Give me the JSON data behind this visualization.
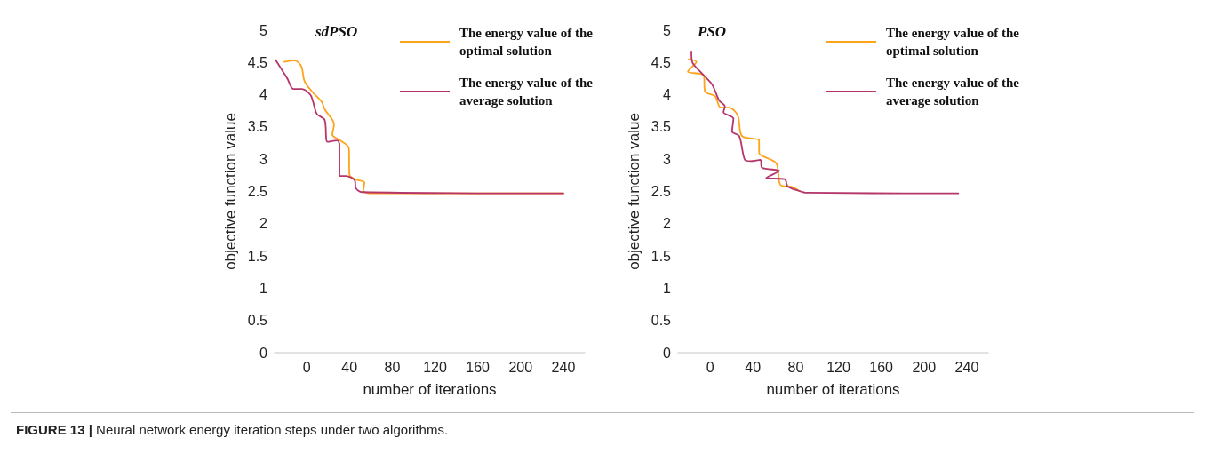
{
  "chart_data": [
    {
      "type": "line",
      "title": "sdPSO",
      "xlabel": "number of iterations",
      "ylabel": "objective function value",
      "xlim": [
        -30,
        260
      ],
      "xticks": [
        0,
        40,
        80,
        120,
        160,
        200,
        240
      ],
      "ylim": [
        0,
        5
      ],
      "yticks": [
        0,
        0.5,
        1,
        1.5,
        2,
        2.5,
        3,
        3.5,
        4,
        4.5,
        5
      ],
      "legend": "top right",
      "marker": "none",
      "line_style": "solid",
      "series": [
        {
          "name": "The energy value of the optimal solution",
          "color": "#ffa31a",
          "x": [
            -21,
            -11,
            -5,
            -2,
            5,
            14,
            17,
            25.6,
            24,
            31.5,
            39.5,
            40,
            45,
            54,
            53,
            59.5,
            240
          ],
          "values": [
            4.51,
            4.53,
            4.44,
            4.21,
            4.05,
            3.89,
            3.77,
            3.54,
            3.38,
            3.29,
            3.17,
            2.76,
            2.69,
            2.64,
            2.51,
            2.47,
            2.47
          ]
        },
        {
          "name": "The energy value of the average solution",
          "color": "#b5366b",
          "x": [
            -29,
            -18,
            -12.5,
            -4.5,
            3.5,
            6,
            9.6,
            16.8,
            19.5,
            28.8,
            30.7,
            30.7,
            36.8,
            45,
            46,
            51.5,
            240
          ],
          "values": [
            4.54,
            4.25,
            4.09,
            4.09,
            4.0,
            3.89,
            3.7,
            3.61,
            3.27,
            3.29,
            3.22,
            2.74,
            2.74,
            2.67,
            2.55,
            2.49,
            2.47
          ]
        }
      ],
      "annotations": [
        "FIGURE 13 | Neural network energy iteration steps under two algorithms."
      ]
    },
    {
      "type": "line",
      "title": "PSO",
      "xlabel": "number of iterations",
      "ylabel": "objective function value",
      "xlim": [
        -30,
        260
      ],
      "xticks": [
        0,
        40,
        80,
        120,
        160,
        200,
        240
      ],
      "ylim": [
        0,
        5
      ],
      "yticks": [
        0,
        0.5,
        1,
        1.5,
        2,
        2.5,
        3,
        3.5,
        4,
        4.5,
        5
      ],
      "legend": "top right",
      "marker": "none",
      "line_style": "solid",
      "series": [
        {
          "name": "The energy value of the optimal solution",
          "color": "#ffa31a",
          "x": [
            -20,
            -12.8,
            -20.8,
            -6,
            -4.8,
            4.5,
            9.8,
            17.8,
            25.8,
            29.8,
            45.8,
            45.8,
            61.8,
            65.8,
            76.5,
            83
          ],
          "values": [
            4.55,
            4.51,
            4.36,
            4.3,
            4.05,
            3.98,
            3.8,
            3.8,
            3.68,
            3.36,
            3.29,
            3.1,
            2.94,
            2.6,
            2.57,
            2.51
          ]
        },
        {
          "name": "The energy value of the average solution",
          "color": "#b5366b",
          "x": [
            -17.5,
            -16.8,
            -8.8,
            1.8,
            8.5,
            13.8,
            12.5,
            21.8,
            20.5,
            27.2,
            32.5,
            37.8,
            47,
            48.5,
            64.5,
            52.5,
            69.8,
            72.5,
            83,
            90,
            232
          ],
          "values": [
            4.67,
            4.51,
            4.35,
            4.16,
            3.91,
            3.82,
            3.73,
            3.63,
            3.43,
            3.36,
            2.99,
            2.97,
            2.99,
            2.87,
            2.82,
            2.71,
            2.69,
            2.58,
            2.51,
            2.48,
            2.47
          ]
        }
      ]
    }
  ]
}
